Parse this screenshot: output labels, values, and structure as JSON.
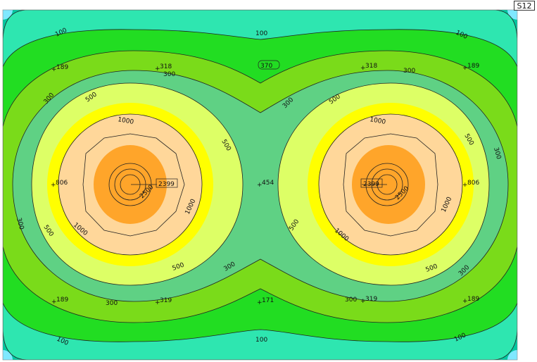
{
  "sheet_tag": "S12",
  "colors": {
    "outer_corner": "#00c8a0",
    "corner_tip": "#7fe8ff",
    "band_100": "#2ee6b0",
    "band_189": "#22dd22",
    "band_300_outer": "#7adb1a",
    "band_300_inner": "#5fd184",
    "band_500": "#ddff66",
    "band_yellow": "#ffff00",
    "band_1000": "#ffd79a",
    "band_2500": "#ffa52a",
    "contour": "#222222"
  },
  "contour_labels": {
    "l100": "100",
    "l300": "300",
    "l500": "500",
    "l1000": "1000",
    "l2500": "2500"
  },
  "point_values": {
    "p189": "189",
    "p318": "318",
    "p319": "319",
    "p454": "454",
    "p171": "171",
    "p806": "806",
    "p2399": "2399",
    "p370": "370"
  }
}
